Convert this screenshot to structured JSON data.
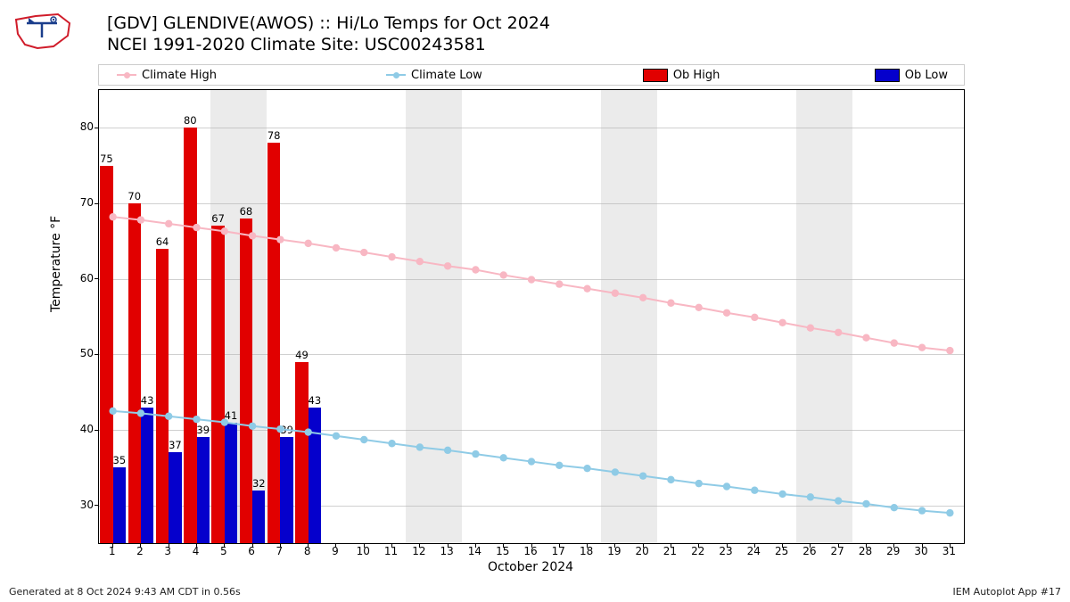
{
  "header": {
    "title_line1": "[GDV] GLENDIVE(AWOS) :: Hi/Lo Temps for Oct 2024",
    "title_line2": "NCEI 1991-2020 Climate Site: USC00243581"
  },
  "footer": {
    "left": "Generated at 8 Oct 2024 9:43 AM CDT in 0.56s",
    "right": "IEM Autoplot App #17"
  },
  "chart": {
    "type": "bar+line",
    "ylabel": "Temperature °F",
    "xlabel": "October 2024",
    "xlim": [
      0.5,
      31.5
    ],
    "ylim": [
      25,
      85
    ],
    "yticks": [
      30,
      40,
      50,
      60,
      70,
      80
    ],
    "xticks": [
      1,
      2,
      3,
      4,
      5,
      6,
      7,
      8,
      9,
      10,
      11,
      12,
      13,
      14,
      15,
      16,
      17,
      18,
      19,
      20,
      21,
      22,
      23,
      24,
      25,
      26,
      27,
      28,
      29,
      30,
      31
    ],
    "background_color": "#ffffff",
    "grid_color": "#b0b0b0",
    "weekend_color": "#ebebeb",
    "weekends": [
      [
        5,
        6
      ],
      [
        12,
        13
      ],
      [
        19,
        20
      ],
      [
        26,
        27
      ]
    ],
    "ob_high": {
      "color": "#e10000",
      "values": {
        "1": 75,
        "2": 70,
        "3": 64,
        "4": 80,
        "5": 67,
        "6": 68,
        "7": 78,
        "8": 49
      }
    },
    "ob_low": {
      "color": "#0500cc",
      "values": {
        "1": 35,
        "2": 43,
        "3": 37,
        "4": 39,
        "5": 41,
        "6": 32,
        "7": 39,
        "8": 43
      }
    },
    "climate_high": {
      "color": "#f8b7c3",
      "marker_color": "#f8b7c3",
      "values": [
        68.2,
        67.8,
        67.3,
        66.8,
        66.3,
        65.7,
        65.2,
        64.7,
        64.1,
        63.5,
        62.9,
        62.3,
        61.7,
        61.2,
        60.5,
        59.9,
        59.3,
        58.7,
        58.1,
        57.5,
        56.8,
        56.2,
        55.5,
        54.9,
        54.2,
        53.5,
        52.9,
        52.2,
        51.5,
        50.9,
        50.5
      ]
    },
    "climate_low": {
      "color": "#8fcbe6",
      "marker_color": "#8fcbe6",
      "values": [
        42.5,
        42.2,
        41.8,
        41.4,
        41.0,
        40.5,
        40.1,
        39.7,
        39.2,
        38.7,
        38.2,
        37.7,
        37.3,
        36.8,
        36.3,
        35.8,
        35.3,
        34.9,
        34.4,
        33.9,
        33.4,
        32.9,
        32.5,
        32.0,
        31.5,
        31.1,
        30.6,
        30.2,
        29.7,
        29.3,
        29.0
      ]
    },
    "bar_half_width": 0.23,
    "line_width": 2,
    "marker_radius": 4.2,
    "label_fontsize": 11.5
  },
  "legend": {
    "items": [
      {
        "label": "Climate High",
        "type": "line",
        "color": "#f8b7c3"
      },
      {
        "label": "Climate Low",
        "type": "line",
        "color": "#8fcbe6"
      },
      {
        "label": "Ob High",
        "type": "rect",
        "color": "#e10000"
      },
      {
        "label": "Ob Low",
        "type": "rect",
        "color": "#0500cc"
      }
    ]
  }
}
